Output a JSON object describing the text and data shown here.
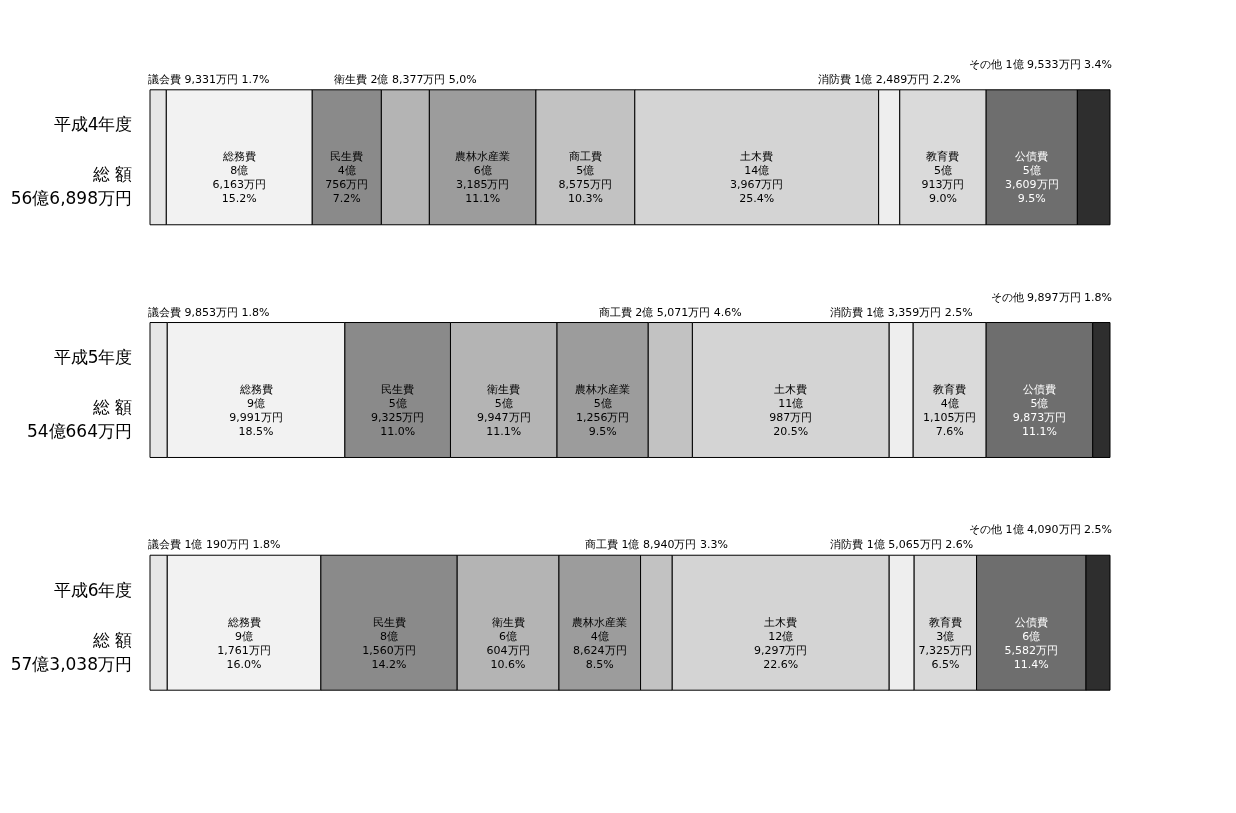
{
  "chart_data": {
    "type": "bar",
    "orientation": "horizontal",
    "stacked": true,
    "categories": [
      "平成4年度",
      "平成5年度",
      "平成6年度"
    ],
    "totals": [
      "総 額\n56億6,898万円",
      "総 額\n54億664万円",
      "総 額\n57億3,038万円"
    ],
    "series": [
      {
        "name": "議会費",
        "color": "#e6e6e6",
        "values": [
          1.7,
          1.8,
          1.8
        ],
        "value_labels": [
          "9,331万円 1.7%",
          "9,853万円 1.8%",
          "1億 190万円 1.8%"
        ]
      },
      {
        "name": "総務費",
        "color": "#f2f2f2",
        "values": [
          15.2,
          18.5,
          16.0
        ],
        "value_labels": [
          "8億 6,163万円 15.2%",
          "9億 9,991万円 18.5%",
          "9億 1,761万円 16.0%"
        ]
      },
      {
        "name": "民生費",
        "color": "#8a8a8a",
        "values": [
          7.2,
          11.0,
          14.2
        ],
        "value_labels": [
          "4億 756万円 7.2%",
          "5億 9,325万円 11.0%",
          "8億 1,560万円 14.2%"
        ]
      },
      {
        "name": "衛生費",
        "color": "#b4b4b4",
        "values": [
          5.0,
          11.1,
          10.6
        ],
        "value_labels": [
          "2億 8,377万円 5,0%",
          "5億 9,947万円 11.1%",
          "6億 604万円 10.6%"
        ]
      },
      {
        "name": "農林水産業",
        "color": "#9c9c9c",
        "values": [
          11.1,
          9.5,
          8.5
        ],
        "value_labels": [
          "6億 3,185万円 11.1%",
          "5億 1,256万円 9.5%",
          "4億 8,624万円 8.5%"
        ]
      },
      {
        "name": "商工費",
        "color": "#c2c2c2",
        "values": [
          10.3,
          4.6,
          3.3
        ],
        "value_labels": [
          "5億 8,575万円 10.3%",
          "2億 5,071万円 4.6%",
          "1億 8,940万円 3.3%"
        ]
      },
      {
        "name": "土木費",
        "color": "#d4d4d4",
        "values": [
          25.4,
          20.5,
          22.6
        ],
        "value_labels": [
          "14億 3,967万円 25.4%",
          "11億 987万円 20.5%",
          "12億 9,297万円 22.6%"
        ]
      },
      {
        "name": "消防費",
        "color": "#eeeeee",
        "values": [
          2.2,
          2.5,
          2.6
        ],
        "value_labels": [
          "1億 2,489万円 2.2%",
          "1億 3,359万円 2.5%",
          "1億 5,065万円 2.6%"
        ]
      },
      {
        "name": "教育費",
        "color": "#dadada",
        "values": [
          9.0,
          7.6,
          6.5
        ],
        "value_labels": [
          "5億 913万円 9.0%",
          "4億 1,105万円 7.6%",
          "3億 7,325万円 6.5%"
        ]
      },
      {
        "name": "公債費",
        "color": "#6e6e6e",
        "values": [
          9.5,
          11.1,
          11.4
        ],
        "value_labels": [
          "5億 3,609万円 9.5%",
          "5億 9,873万円 11.1%",
          "6億 5,582万円 11.4%"
        ]
      },
      {
        "name": "その他",
        "color": "#2e2e2e",
        "values": [
          3.4,
          1.8,
          2.5
        ],
        "value_labels": [
          "1億 9,533万円 3.4%",
          "9,897万円 1.8%",
          "1億 4,090万円 2.5%"
        ]
      }
    ]
  }
}
